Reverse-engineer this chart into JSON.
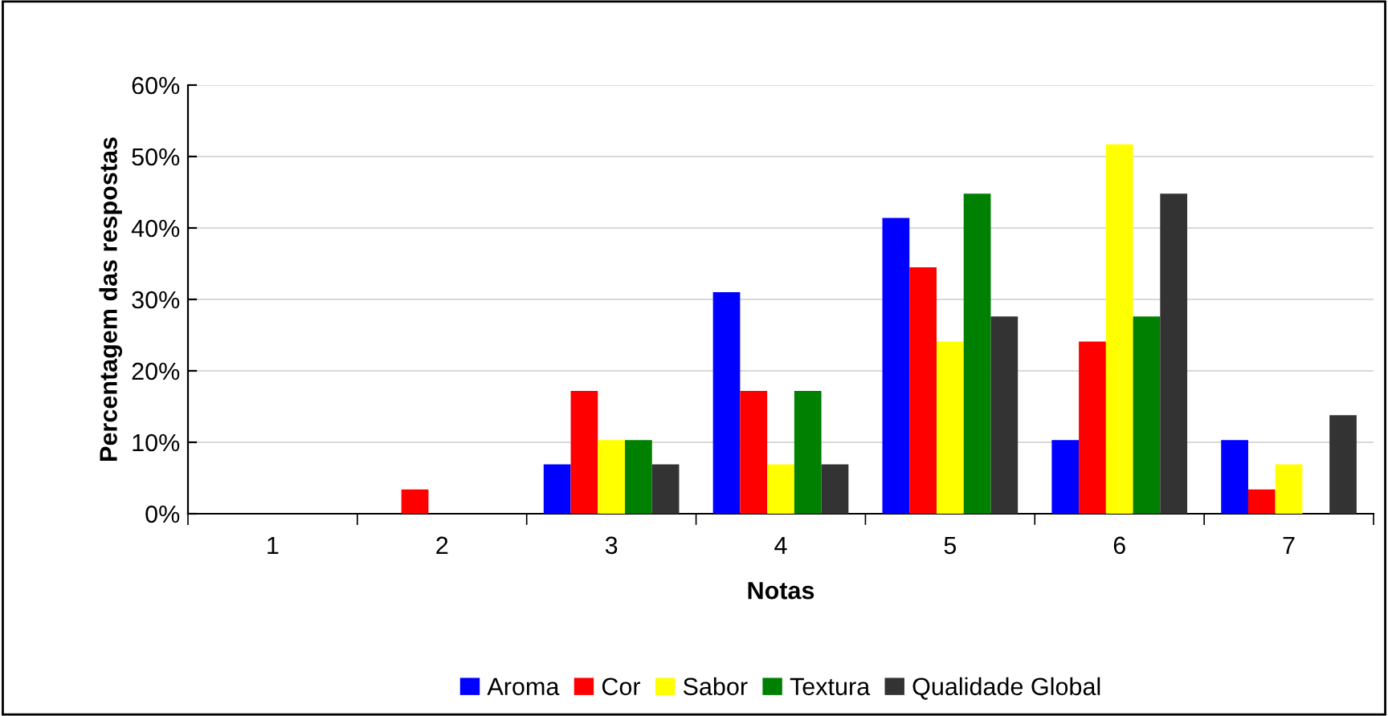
{
  "chart_data": {
    "type": "bar",
    "xlabel": "Notas",
    "ylabel": "Percentagem das respostas",
    "categories": [
      "1",
      "2",
      "3",
      "4",
      "5",
      "6",
      "7"
    ],
    "series": [
      {
        "name": "Aroma",
        "color": "#0000ff",
        "values": [
          0,
          0,
          6.9,
          31.0,
          41.4,
          10.3,
          10.3
        ]
      },
      {
        "name": "Cor",
        "color": "#ff0000",
        "values": [
          0,
          3.4,
          17.2,
          17.2,
          34.5,
          24.1,
          3.4
        ]
      },
      {
        "name": "Sabor",
        "color": "#ffff00",
        "values": [
          0,
          0,
          10.3,
          6.9,
          24.1,
          51.7,
          6.9
        ]
      },
      {
        "name": "Textura",
        "color": "#008000",
        "values": [
          0,
          0,
          10.3,
          17.2,
          44.8,
          27.6,
          0
        ]
      },
      {
        "name": "Qualidade Global",
        "color": "#333333",
        "values": [
          0,
          0,
          6.9,
          6.9,
          27.6,
          44.8,
          13.8
        ]
      }
    ],
    "ylim": [
      0,
      60
    ],
    "yticks": [
      {
        "value": 0,
        "label": "0%"
      },
      {
        "value": 10,
        "label": "10%"
      },
      {
        "value": 20,
        "label": "20%"
      },
      {
        "value": 30,
        "label": "30%"
      },
      {
        "value": 40,
        "label": "40%"
      },
      {
        "value": 50,
        "label": "50%"
      },
      {
        "value": 60,
        "label": "60%"
      }
    ],
    "grid": "y",
    "legend": "bottom"
  }
}
